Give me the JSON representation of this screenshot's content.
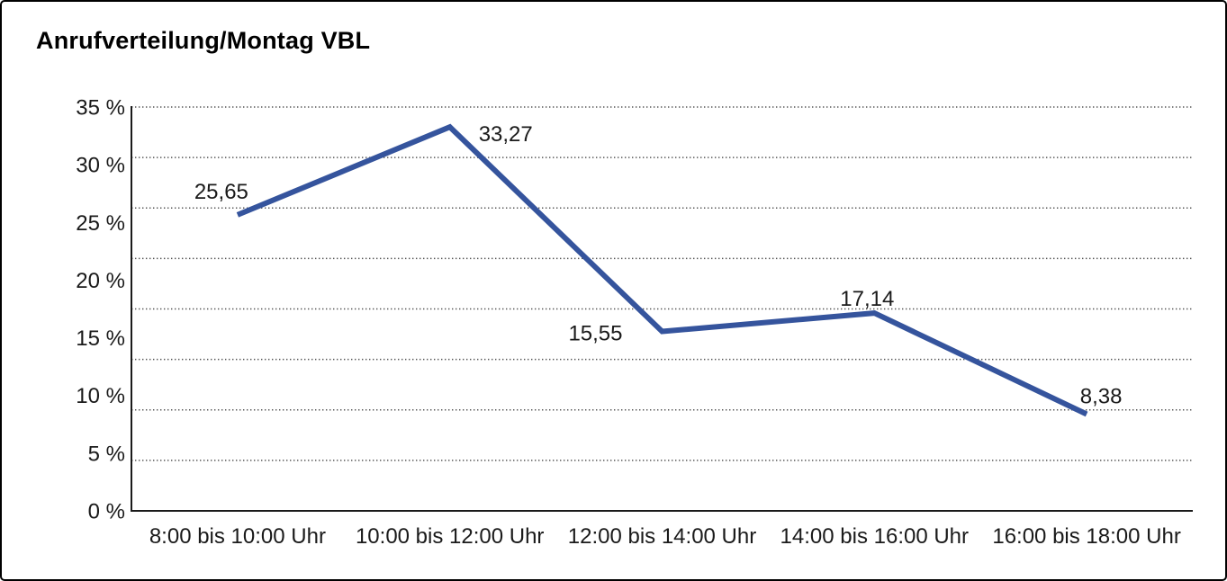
{
  "chart_data": {
    "type": "line",
    "title": "Anrufverteilung/Montag VBL",
    "categories": [
      "8:00 bis 10:00 Uhr",
      "10:00 bis 12:00 Uhr",
      "12:00 bis 14:00 Uhr",
      "14:00 bis 16:00 Uhr",
      "16:00 bis 18:00 Uhr"
    ],
    "series": [
      {
        "name": "Anrufverteilung Montag VBL",
        "values": [
          25.65,
          33.27,
          15.55,
          17.14,
          8.38
        ]
      }
    ],
    "data_labels": [
      "25,65",
      "33,27",
      "15,55",
      "17,14",
      "8,38"
    ],
    "y_ticks": [
      "35 %",
      "30 %",
      "25 %",
      "20 %",
      "15 %",
      "10 %",
      "5 %",
      "0 %"
    ],
    "y_tick_values": [
      35,
      30,
      25,
      20,
      15,
      10,
      5,
      0
    ],
    "ylim": [
      0,
      35
    ],
    "xlabel": "",
    "ylabel": "",
    "legend": "none",
    "grid": "horizontal-dotted",
    "gridline_count": 9,
    "colors": {
      "line": "#35549D",
      "text": "#1a1a1a",
      "grid": "#555555",
      "axis": "#1a1a1a",
      "background": "#ffffff",
      "frame_border": "#000000"
    },
    "line_width": 6
  }
}
